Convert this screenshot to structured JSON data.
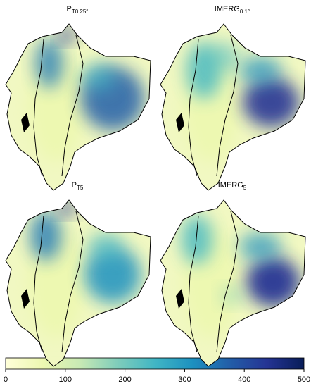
{
  "panels": [
    {
      "title": "P",
      "subscript": "T0.25°"
    },
    {
      "title": "IMERG",
      "subscript": "0.1°"
    },
    {
      "title": "P",
      "subscript": "T5"
    },
    {
      "title": "IMERG",
      "subscript": "5"
    }
  ],
  "colorbar": {
    "lim": [
      0,
      500
    ],
    "ticks": [
      0,
      100,
      200,
      300,
      400,
      500
    ]
  }
}
